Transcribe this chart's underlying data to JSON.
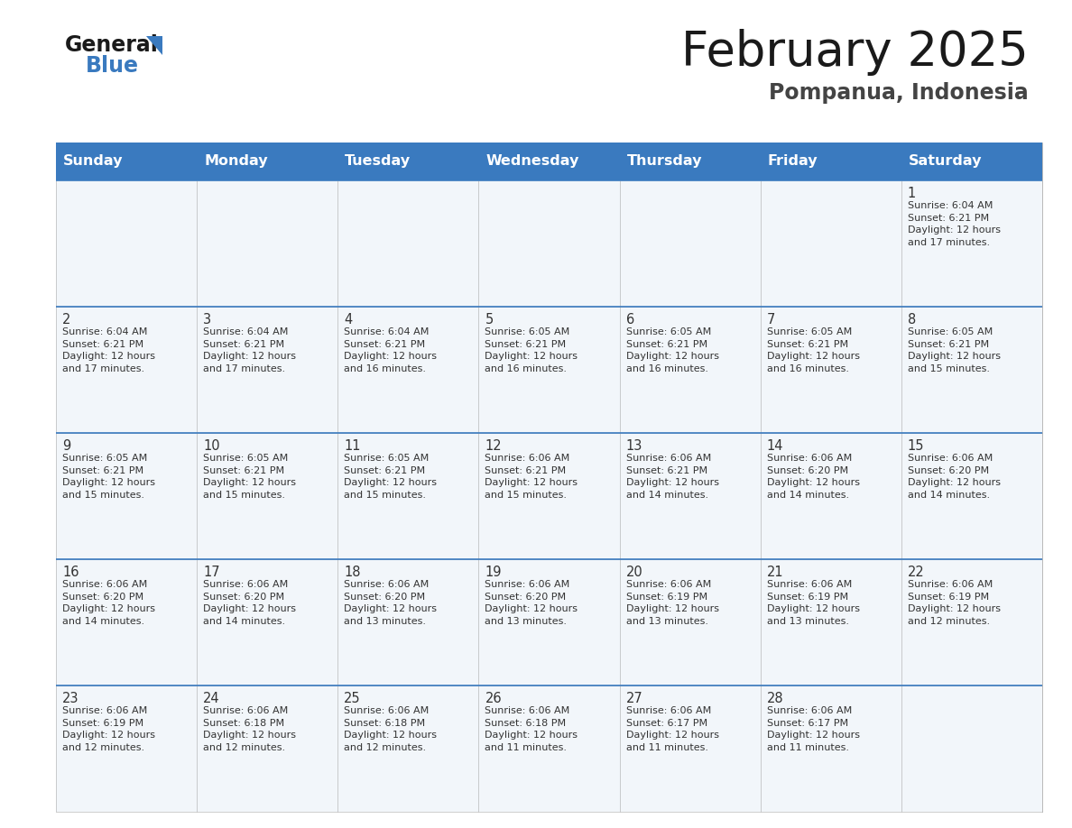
{
  "title": "February 2025",
  "subtitle": "Pompanua, Indonesia",
  "header_color": "#3a7abf",
  "header_text_color": "#ffffff",
  "cell_bg_color": "#f2f6fa",
  "border_color": "#3a7abf",
  "grid_line_color": "#aaaaaa",
  "text_color": "#333333",
  "days_of_week": [
    "Sunday",
    "Monday",
    "Tuesday",
    "Wednesday",
    "Thursday",
    "Friday",
    "Saturday"
  ],
  "weeks": [
    [
      {
        "day": null,
        "info": null
      },
      {
        "day": null,
        "info": null
      },
      {
        "day": null,
        "info": null
      },
      {
        "day": null,
        "info": null
      },
      {
        "day": null,
        "info": null
      },
      {
        "day": null,
        "info": null
      },
      {
        "day": 1,
        "info": "Sunrise: 6:04 AM\nSunset: 6:21 PM\nDaylight: 12 hours\nand 17 minutes."
      }
    ],
    [
      {
        "day": 2,
        "info": "Sunrise: 6:04 AM\nSunset: 6:21 PM\nDaylight: 12 hours\nand 17 minutes."
      },
      {
        "day": 3,
        "info": "Sunrise: 6:04 AM\nSunset: 6:21 PM\nDaylight: 12 hours\nand 17 minutes."
      },
      {
        "day": 4,
        "info": "Sunrise: 6:04 AM\nSunset: 6:21 PM\nDaylight: 12 hours\nand 16 minutes."
      },
      {
        "day": 5,
        "info": "Sunrise: 6:05 AM\nSunset: 6:21 PM\nDaylight: 12 hours\nand 16 minutes."
      },
      {
        "day": 6,
        "info": "Sunrise: 6:05 AM\nSunset: 6:21 PM\nDaylight: 12 hours\nand 16 minutes."
      },
      {
        "day": 7,
        "info": "Sunrise: 6:05 AM\nSunset: 6:21 PM\nDaylight: 12 hours\nand 16 minutes."
      },
      {
        "day": 8,
        "info": "Sunrise: 6:05 AM\nSunset: 6:21 PM\nDaylight: 12 hours\nand 15 minutes."
      }
    ],
    [
      {
        "day": 9,
        "info": "Sunrise: 6:05 AM\nSunset: 6:21 PM\nDaylight: 12 hours\nand 15 minutes."
      },
      {
        "day": 10,
        "info": "Sunrise: 6:05 AM\nSunset: 6:21 PM\nDaylight: 12 hours\nand 15 minutes."
      },
      {
        "day": 11,
        "info": "Sunrise: 6:05 AM\nSunset: 6:21 PM\nDaylight: 12 hours\nand 15 minutes."
      },
      {
        "day": 12,
        "info": "Sunrise: 6:06 AM\nSunset: 6:21 PM\nDaylight: 12 hours\nand 15 minutes."
      },
      {
        "day": 13,
        "info": "Sunrise: 6:06 AM\nSunset: 6:21 PM\nDaylight: 12 hours\nand 14 minutes."
      },
      {
        "day": 14,
        "info": "Sunrise: 6:06 AM\nSunset: 6:20 PM\nDaylight: 12 hours\nand 14 minutes."
      },
      {
        "day": 15,
        "info": "Sunrise: 6:06 AM\nSunset: 6:20 PM\nDaylight: 12 hours\nand 14 minutes."
      }
    ],
    [
      {
        "day": 16,
        "info": "Sunrise: 6:06 AM\nSunset: 6:20 PM\nDaylight: 12 hours\nand 14 minutes."
      },
      {
        "day": 17,
        "info": "Sunrise: 6:06 AM\nSunset: 6:20 PM\nDaylight: 12 hours\nand 14 minutes."
      },
      {
        "day": 18,
        "info": "Sunrise: 6:06 AM\nSunset: 6:20 PM\nDaylight: 12 hours\nand 13 minutes."
      },
      {
        "day": 19,
        "info": "Sunrise: 6:06 AM\nSunset: 6:20 PM\nDaylight: 12 hours\nand 13 minutes."
      },
      {
        "day": 20,
        "info": "Sunrise: 6:06 AM\nSunset: 6:19 PM\nDaylight: 12 hours\nand 13 minutes."
      },
      {
        "day": 21,
        "info": "Sunrise: 6:06 AM\nSunset: 6:19 PM\nDaylight: 12 hours\nand 13 minutes."
      },
      {
        "day": 22,
        "info": "Sunrise: 6:06 AM\nSunset: 6:19 PM\nDaylight: 12 hours\nand 12 minutes."
      }
    ],
    [
      {
        "day": 23,
        "info": "Sunrise: 6:06 AM\nSunset: 6:19 PM\nDaylight: 12 hours\nand 12 minutes."
      },
      {
        "day": 24,
        "info": "Sunrise: 6:06 AM\nSunset: 6:18 PM\nDaylight: 12 hours\nand 12 minutes."
      },
      {
        "day": 25,
        "info": "Sunrise: 6:06 AM\nSunset: 6:18 PM\nDaylight: 12 hours\nand 12 minutes."
      },
      {
        "day": 26,
        "info": "Sunrise: 6:06 AM\nSunset: 6:18 PM\nDaylight: 12 hours\nand 11 minutes."
      },
      {
        "day": 27,
        "info": "Sunrise: 6:06 AM\nSunset: 6:17 PM\nDaylight: 12 hours\nand 11 minutes."
      },
      {
        "day": 28,
        "info": "Sunrise: 6:06 AM\nSunset: 6:17 PM\nDaylight: 12 hours\nand 11 minutes."
      },
      {
        "day": null,
        "info": null
      }
    ]
  ]
}
